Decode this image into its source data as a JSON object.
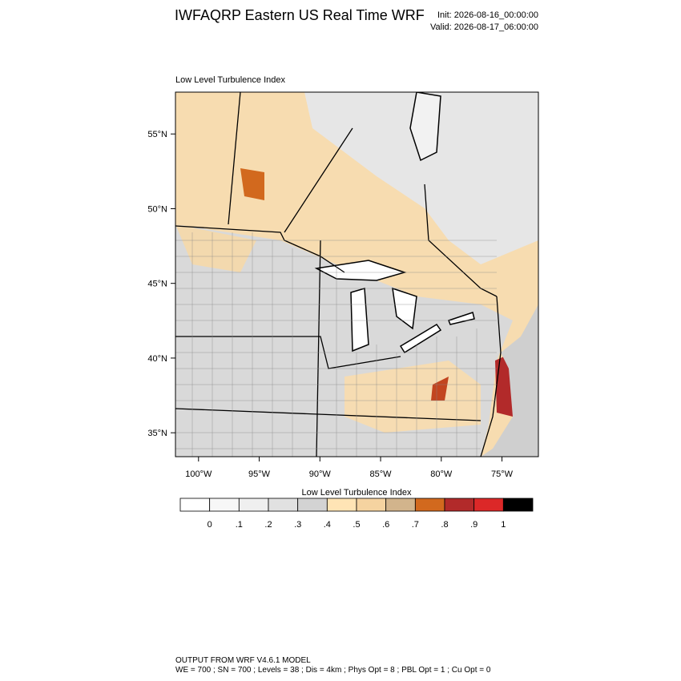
{
  "header": {
    "title": "IWFAQRP Eastern US Real Time WRF",
    "init": "Init: 2026-08-16_00:00:00",
    "valid": "Valid: 2026-08-17_06:00:00"
  },
  "map": {
    "label": "Low Level Turbulence Index",
    "xlim": [
      -101.9,
      -72.0
    ],
    "ylim": [
      33.4,
      57.8
    ],
    "yticks": [
      {
        "value": 55,
        "label": "55°N"
      },
      {
        "value": 50,
        "label": "50°N"
      },
      {
        "value": 45,
        "label": "45°N"
      },
      {
        "value": 40,
        "label": "40°N"
      },
      {
        "value": 35,
        "label": "35°N"
      }
    ],
    "xticks": [
      {
        "value": -100,
        "label": "100°W"
      },
      {
        "value": -95,
        "label": "95°W"
      },
      {
        "value": -90,
        "label": "90°W"
      },
      {
        "value": -85,
        "label": "85°W"
      },
      {
        "value": -80,
        "label": "80°W"
      },
      {
        "value": -75,
        "label": "75°W"
      }
    ]
  },
  "colorbar": {
    "title": "Low Level Turbulence Index",
    "colors": [
      "#ffffff",
      "#f7f7f7",
      "#efefef",
      "#e1e1e1",
      "#d3d3d3",
      "#ffe4b5",
      "#f5d3a0",
      "#d2b48c",
      "#d2691e",
      "#b22a2a",
      "#dc2828",
      "#000000"
    ],
    "ticks": [
      0,
      {
        "value": 0.1,
        "label": ".1"
      },
      {
        "value": 0.2,
        "label": ".2"
      },
      {
        "value": 0.3,
        "label": ".3"
      },
      {
        "value": 0.4,
        "label": ".4"
      },
      {
        "value": 0.5,
        "label": ".5"
      },
      {
        "value": 0.6,
        "label": ".6"
      },
      {
        "value": 0.7,
        "label": ".7"
      },
      {
        "value": 0.8,
        "label": ".8"
      },
      {
        "value": 0.9,
        "label": ".9"
      },
      1
    ]
  },
  "footer": {
    "line1": "OUTPUT FROM WRF V4.6.1 MODEL",
    "line2": "WE = 700 ; SN = 700 ; Levels = 38 ; Dis = 4km ; Phys Opt = 8 ; PBL Opt = 1 ; Cu Opt = 0"
  }
}
